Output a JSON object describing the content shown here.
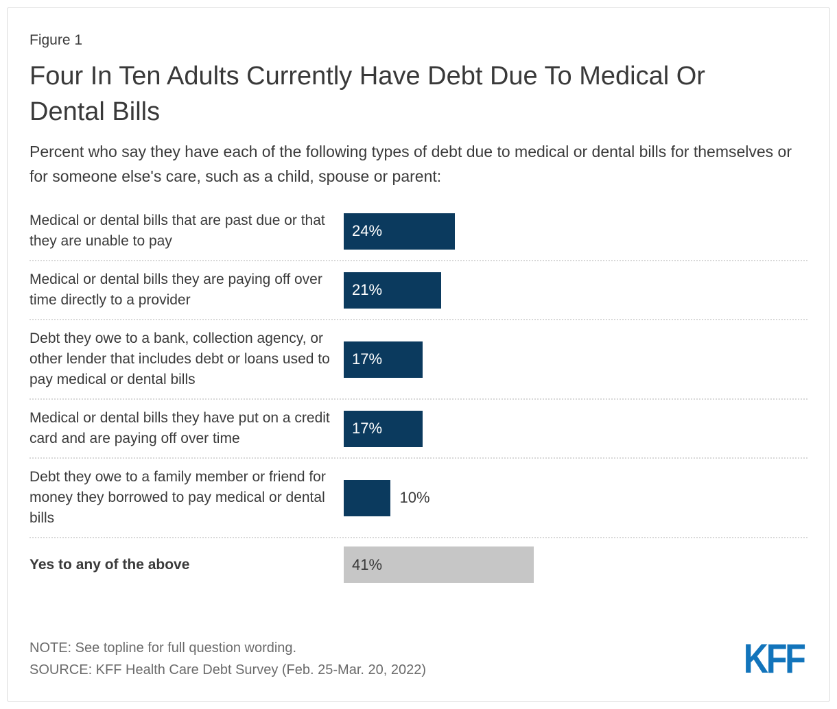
{
  "header": {
    "figure_label": "Figure 1",
    "title": "Four In Ten Adults Currently Have Debt Due To Medical Or Dental Bills",
    "subtitle": "Percent who say they have each of the following types of debt due to medical or dental bills for themselves or for someone else's care, such as a child, spouse or parent:"
  },
  "chart_data": {
    "type": "bar",
    "orientation": "horizontal",
    "unit": "percent",
    "x_max_implied": 100,
    "grid": false,
    "legend": false,
    "colors": {
      "bar": "#0b3a5e",
      "total_bar": "#c6c6c6"
    },
    "rows": [
      {
        "label": "Medical or dental bills that are past due or that they are unable to pay",
        "value": 24,
        "display": "24%",
        "variant": "navy",
        "value_position": "inside",
        "label_bold": false
      },
      {
        "label": "Medical or dental bills they are paying off over time directly to a provider",
        "value": 21,
        "display": "21%",
        "variant": "navy",
        "value_position": "inside",
        "label_bold": false
      },
      {
        "label": "Debt they owe to a bank, collection agency, or other lender that includes debt or loans used to pay medical or dental bills",
        "value": 17,
        "display": "17%",
        "variant": "navy",
        "value_position": "inside",
        "label_bold": false
      },
      {
        "label": "Medical or dental bills they have put on a credit card and are paying off over time",
        "value": 17,
        "display": "17%",
        "variant": "navy",
        "value_position": "inside",
        "label_bold": false
      },
      {
        "label": "Debt they owe to a family member or friend for money they borrowed to pay medical or dental bills",
        "value": 10,
        "display": "10%",
        "variant": "navy",
        "value_position": "outside",
        "label_bold": false
      },
      {
        "label": "Yes to any of the above",
        "value": 41,
        "display": "41%",
        "variant": "gray",
        "value_position": "inside",
        "label_bold": true
      }
    ]
  },
  "footer": {
    "note": "NOTE: See topline for full question wording.",
    "source": "SOURCE: KFF Health Care Debt Survey (Feb. 25-Mar. 20, 2022)",
    "logo_text": "KFF",
    "logo_color": "#1274bb"
  }
}
